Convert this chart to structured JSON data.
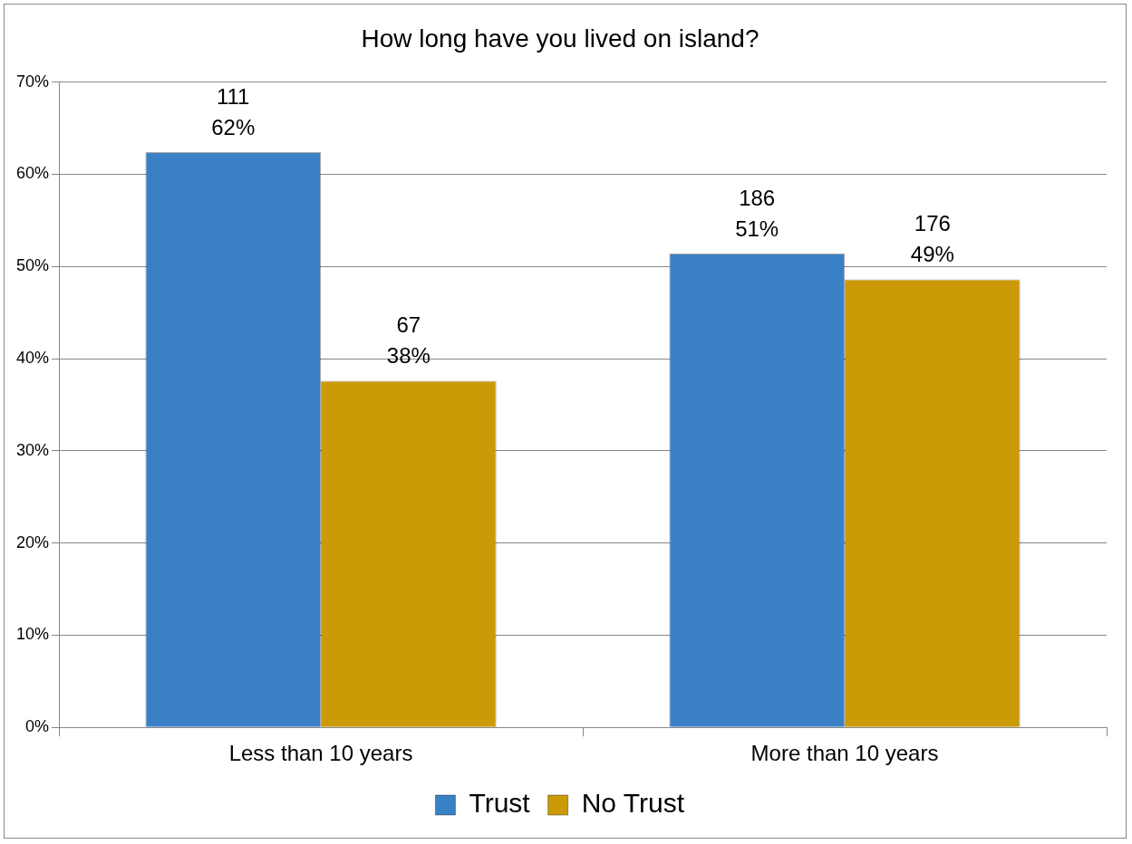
{
  "chart_data": {
    "type": "bar",
    "title": "How long have you lived on island?",
    "categories": [
      "Less than 10 years",
      "More than 10 years"
    ],
    "series": [
      {
        "name": "Trust",
        "color": "#3a80c6",
        "values": [
          62.4,
          51.4
        ],
        "value_labels": [
          "111\n62%",
          "186\n51%"
        ]
      },
      {
        "name": "No Trust",
        "color": "#cc9a06",
        "values": [
          37.6,
          48.6
        ],
        "value_labels": [
          "67\n38%",
          "176\n49%"
        ]
      }
    ],
    "ylim": [
      0,
      70
    ],
    "yticks": [
      {
        "value": 0,
        "label": "0%"
      },
      {
        "value": 10,
        "label": "10%"
      },
      {
        "value": 20,
        "label": "20%"
      },
      {
        "value": 30,
        "label": "30%"
      },
      {
        "value": 40,
        "label": "40%"
      },
      {
        "value": 50,
        "label": "50%"
      },
      {
        "value": 60,
        "label": "60%"
      },
      {
        "value": 70,
        "label": "70%"
      }
    ],
    "grid": "y",
    "legend": "bottom"
  }
}
